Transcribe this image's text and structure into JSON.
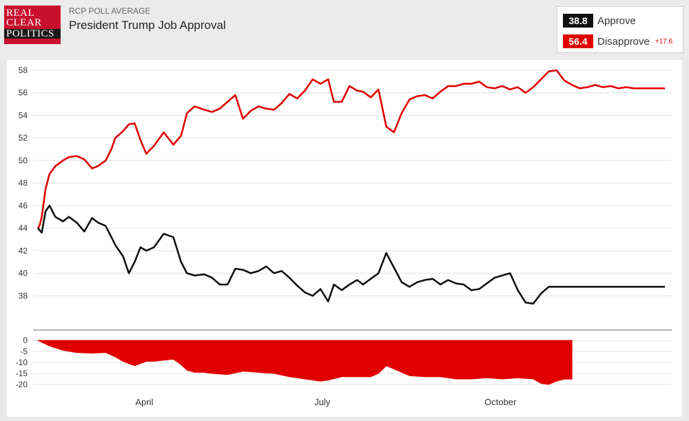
{
  "header": {
    "logo_lines": [
      "REAL",
      "CLEAR",
      "POLITICS"
    ],
    "kicker": "RCP POLL AVERAGE",
    "title": "President Trump Job Approval"
  },
  "legend": {
    "approve": {
      "value": "38.8",
      "label": "Approve",
      "color": "#111111"
    },
    "disapprove": {
      "value": "56.4",
      "label": "Disapprove",
      "color": "#e00000"
    },
    "spread": "+17.6"
  },
  "chart_data": [
    {
      "type": "line",
      "x_months": [
        "April",
        "July",
        "October"
      ],
      "ylim": [
        36,
        58
      ],
      "yticks": [
        "38",
        "40",
        "42",
        "44",
        "46",
        "48",
        "50",
        "52",
        "54",
        "56",
        "58"
      ],
      "grid": true,
      "series": [
        {
          "name": "Disapprove",
          "color": "#e00000",
          "x": [
            0,
            1,
            2,
            4,
            6,
            9,
            13,
            16,
            20,
            24,
            28,
            31,
            35,
            38,
            40,
            44,
            47,
            50,
            53,
            56,
            60,
            65,
            70,
            74,
            77,
            81,
            86,
            90,
            94,
            98,
            102,
            106,
            110,
            114,
            118,
            122,
            126,
            130,
            134,
            138,
            142,
            146,
            150,
            153,
            157,
            161,
            165,
            168,
            172,
            176,
            180,
            184,
            188,
            192,
            196,
            200,
            204,
            208,
            212,
            216,
            220,
            224,
            228,
            232,
            236,
            240,
            244,
            248,
            252,
            256,
            260,
            264,
            268,
            272,
            276,
            280,
            284,
            288,
            292,
            296,
            300,
            304,
            308,
            312,
            316,
            320,
            324
          ],
          "values": [
            44.0,
            44.3,
            45.0,
            47.5,
            48.8,
            49.5,
            50.0,
            50.3,
            50.4,
            50.1,
            49.3,
            49.5,
            50.0,
            51.0,
            52.0,
            52.6,
            53.2,
            53.3,
            51.8,
            50.6,
            51.3,
            52.5,
            51.4,
            52.2,
            54.2,
            54.8,
            54.5,
            54.3,
            54.6,
            55.2,
            55.8,
            53.7,
            54.4,
            54.8,
            54.6,
            54.5,
            55.1,
            55.9,
            55.5,
            56.2,
            57.2,
            56.8,
            57.2,
            55.2,
            55.2,
            56.6,
            56.2,
            56.1,
            55.6,
            56.3,
            53.0,
            52.5,
            54.2,
            55.4,
            55.7,
            55.8,
            55.5,
            56.1,
            56.6,
            56.6,
            56.8,
            56.8,
            57.0,
            56.5,
            56.4,
            56.6,
            56.3,
            56.5,
            56.0,
            56.5,
            57.2,
            57.9,
            58.0,
            57.1,
            56.7,
            56.4,
            56.5,
            56.7,
            56.5,
            56.6,
            56.4,
            56.5,
            56.4,
            56.4,
            56.4,
            56.4,
            56.4
          ]
        },
        {
          "name": "Approve",
          "color": "#111111",
          "x": [
            0,
            2,
            4,
            6,
            9,
            13,
            16,
            20,
            24,
            28,
            31,
            35,
            38,
            40,
            44,
            47,
            50,
            53,
            56,
            60,
            65,
            70,
            74,
            77,
            81,
            86,
            90,
            94,
            98,
            102,
            106,
            110,
            114,
            118,
            122,
            126,
            130,
            134,
            138,
            142,
            146,
            150,
            153,
            157,
            161,
            165,
            168,
            172,
            176,
            180,
            184,
            188,
            192,
            196,
            200,
            204,
            208,
            212,
            216,
            220,
            224,
            228,
            232,
            236,
            240,
            244,
            248,
            252,
            256,
            260,
            264,
            268,
            272,
            276,
            280,
            284,
            288,
            292,
            296,
            300,
            304,
            308,
            312,
            316,
            320,
            324
          ],
          "values": [
            44.0,
            43.6,
            45.5,
            46.0,
            45.0,
            44.6,
            45.0,
            44.5,
            43.7,
            44.9,
            44.5,
            44.2,
            43.2,
            42.5,
            41.5,
            40.0,
            41.0,
            42.3,
            42.0,
            42.3,
            43.5,
            43.2,
            41.0,
            40.0,
            39.8,
            39.9,
            39.6,
            39.0,
            39.0,
            40.4,
            40.3,
            40.0,
            40.2,
            40.6,
            40.0,
            40.2,
            39.6,
            38.9,
            38.3,
            38.0,
            38.6,
            37.5,
            39.0,
            38.5,
            39.0,
            39.4,
            39.0,
            39.5,
            40.0,
            41.8,
            40.5,
            39.2,
            38.8,
            39.2,
            39.4,
            39.5,
            39.0,
            39.4,
            39.1,
            39.0,
            38.5,
            38.6,
            39.1,
            39.6,
            39.8,
            40.0,
            38.5,
            37.4,
            37.3,
            38.2,
            38.8,
            38.8,
            38.8,
            38.8,
            38.8,
            38.8,
            38.8,
            38.8,
            38.8,
            38.8,
            38.8,
            38.8,
            38.8,
            38.8,
            38.8,
            38.8
          ]
        }
      ]
    },
    {
      "type": "area",
      "ylim": [
        -20,
        0
      ],
      "yticks": [
        "0",
        "-5",
        "-10",
        "-15",
        "-20"
      ],
      "series": [
        {
          "color": "#e00000",
          "x": [
            0,
            6,
            13,
            20,
            28,
            35,
            40,
            44,
            50,
            56,
            60,
            65,
            70,
            74,
            77,
            81,
            86,
            90,
            98,
            106,
            114,
            122,
            130,
            138,
            142,
            146,
            150,
            157,
            165,
            172,
            176,
            180,
            184,
            192,
            200,
            208,
            216,
            224,
            232,
            240,
            248,
            256,
            260,
            264,
            268,
            272,
            276
          ],
          "values": [
            0,
            -2.5,
            -4.5,
            -5.5,
            -5.8,
            -5.5,
            -7.5,
            -9.5,
            -11.5,
            -9.5,
            -9.5,
            -9.0,
            -8.5,
            -11.0,
            -13.5,
            -14.5,
            -14.5,
            -15.0,
            -15.5,
            -14.0,
            -14.5,
            -15.0,
            -16.5,
            -17.5,
            -18.0,
            -18.5,
            -18.0,
            -16.5,
            -16.5,
            -16.5,
            -15.0,
            -11.5,
            -13.0,
            -16.0,
            -16.5,
            -16.5,
            -17.5,
            -17.5,
            -17.0,
            -17.5,
            -17.0,
            -17.5,
            -19.5,
            -20.0,
            -18.5,
            -17.6,
            -17.6
          ]
        }
      ]
    }
  ]
}
